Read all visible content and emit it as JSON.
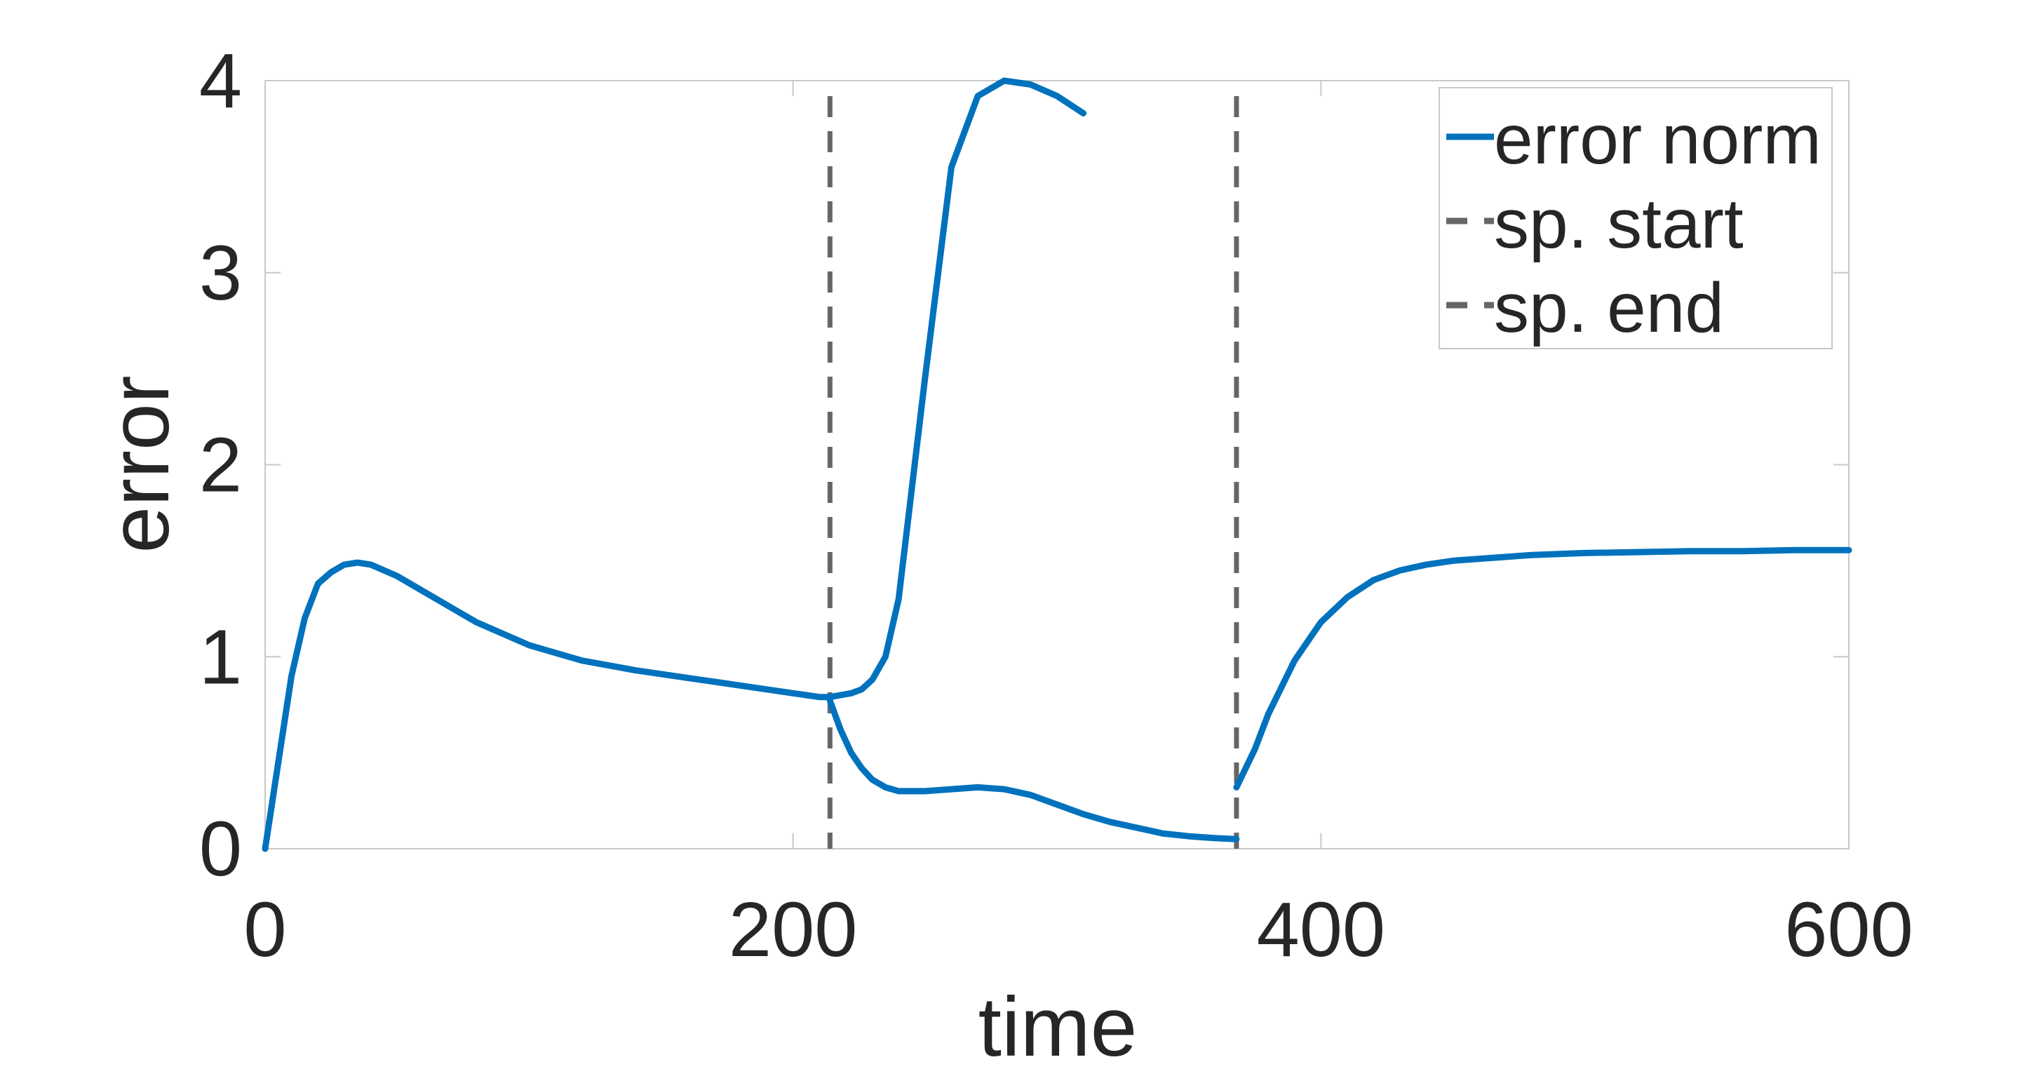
{
  "chart_data": {
    "type": "line",
    "title": "",
    "xlabel": "time",
    "ylabel": "error",
    "xlim": [
      0,
      600
    ],
    "ylim": [
      0,
      4
    ],
    "xticks": [
      0,
      200,
      400,
      600
    ],
    "xtick_labels": [
      "0",
      "200",
      "400",
      "600"
    ],
    "yticks": [
      0,
      1,
      2,
      3,
      4
    ],
    "ytick_labels": [
      "0",
      "1",
      "2",
      "3",
      "4"
    ],
    "grid": false,
    "legend_position": "top-right",
    "legend": [
      {
        "label": "error norm",
        "color": "#0072BD",
        "style": "solid"
      },
      {
        "label": "sp. start",
        "color": "#666666",
        "style": "dashed"
      },
      {
        "label": "sp. end",
        "color": "#666666",
        "style": "dashed"
      }
    ],
    "series": [
      {
        "name": "error norm",
        "color": "#0072BD",
        "style": "solid",
        "x": [
          0,
          5,
          10,
          15,
          20,
          25,
          30,
          35,
          40,
          50,
          60,
          70,
          80,
          100,
          120,
          140,
          160,
          180,
          200,
          205,
          210,
          214,
          218,
          222,
          226,
          230,
          235,
          240,
          250,
          260,
          270,
          280,
          290,
          300,
          310,
          320,
          330,
          340,
          350,
          360,
          368
        ],
        "y": [
          0,
          0.45,
          0.9,
          1.2,
          1.38,
          1.44,
          1.48,
          1.49,
          1.48,
          1.42,
          1.34,
          1.26,
          1.18,
          1.06,
          0.98,
          0.93,
          0.89,
          0.85,
          0.81,
          0.8,
          0.79,
          0.79,
          0.8,
          0.81,
          0.83,
          0.88,
          1.0,
          1.3,
          2.45,
          3.55,
          3.92,
          4.0,
          3.98,
          3.92,
          3.83,
          null,
          null,
          null,
          null,
          null,
          null
        ]
      },
      {
        "name": "",
        "color": "#0072BD",
        "style": "solid",
        "x": [
          214,
          218,
          222,
          226,
          230,
          235,
          240,
          250,
          260,
          270,
          280,
          290,
          300,
          310,
          320,
          330,
          340,
          350,
          360,
          368
        ],
        "y": [
          0.77,
          0.62,
          0.5,
          0.42,
          0.36,
          0.32,
          0.3,
          0.3,
          0.31,
          0.32,
          0.31,
          0.28,
          0.23,
          0.18,
          0.14,
          0.11,
          0.08,
          0.065,
          0.055,
          0.05
        ]
      },
      {
        "name": "",
        "color": "#0072BD",
        "style": "solid",
        "x": [
          368,
          375,
          380,
          390,
          400,
          410,
          420,
          430,
          440,
          450,
          460,
          480,
          500,
          520,
          540,
          560,
          580,
          600
        ],
        "y": [
          0.32,
          0.52,
          0.7,
          0.98,
          1.18,
          1.31,
          1.4,
          1.45,
          1.48,
          1.5,
          1.51,
          1.53,
          1.54,
          1.545,
          1.55,
          1.55,
          1.555,
          1.555
        ]
      }
    ],
    "vertical_lines": [
      {
        "name": "sp. start",
        "x": 214,
        "color": "#666666",
        "style": "dashed"
      },
      {
        "name": "sp. end",
        "x": 368,
        "color": "#666666",
        "style": "dashed"
      }
    ]
  }
}
